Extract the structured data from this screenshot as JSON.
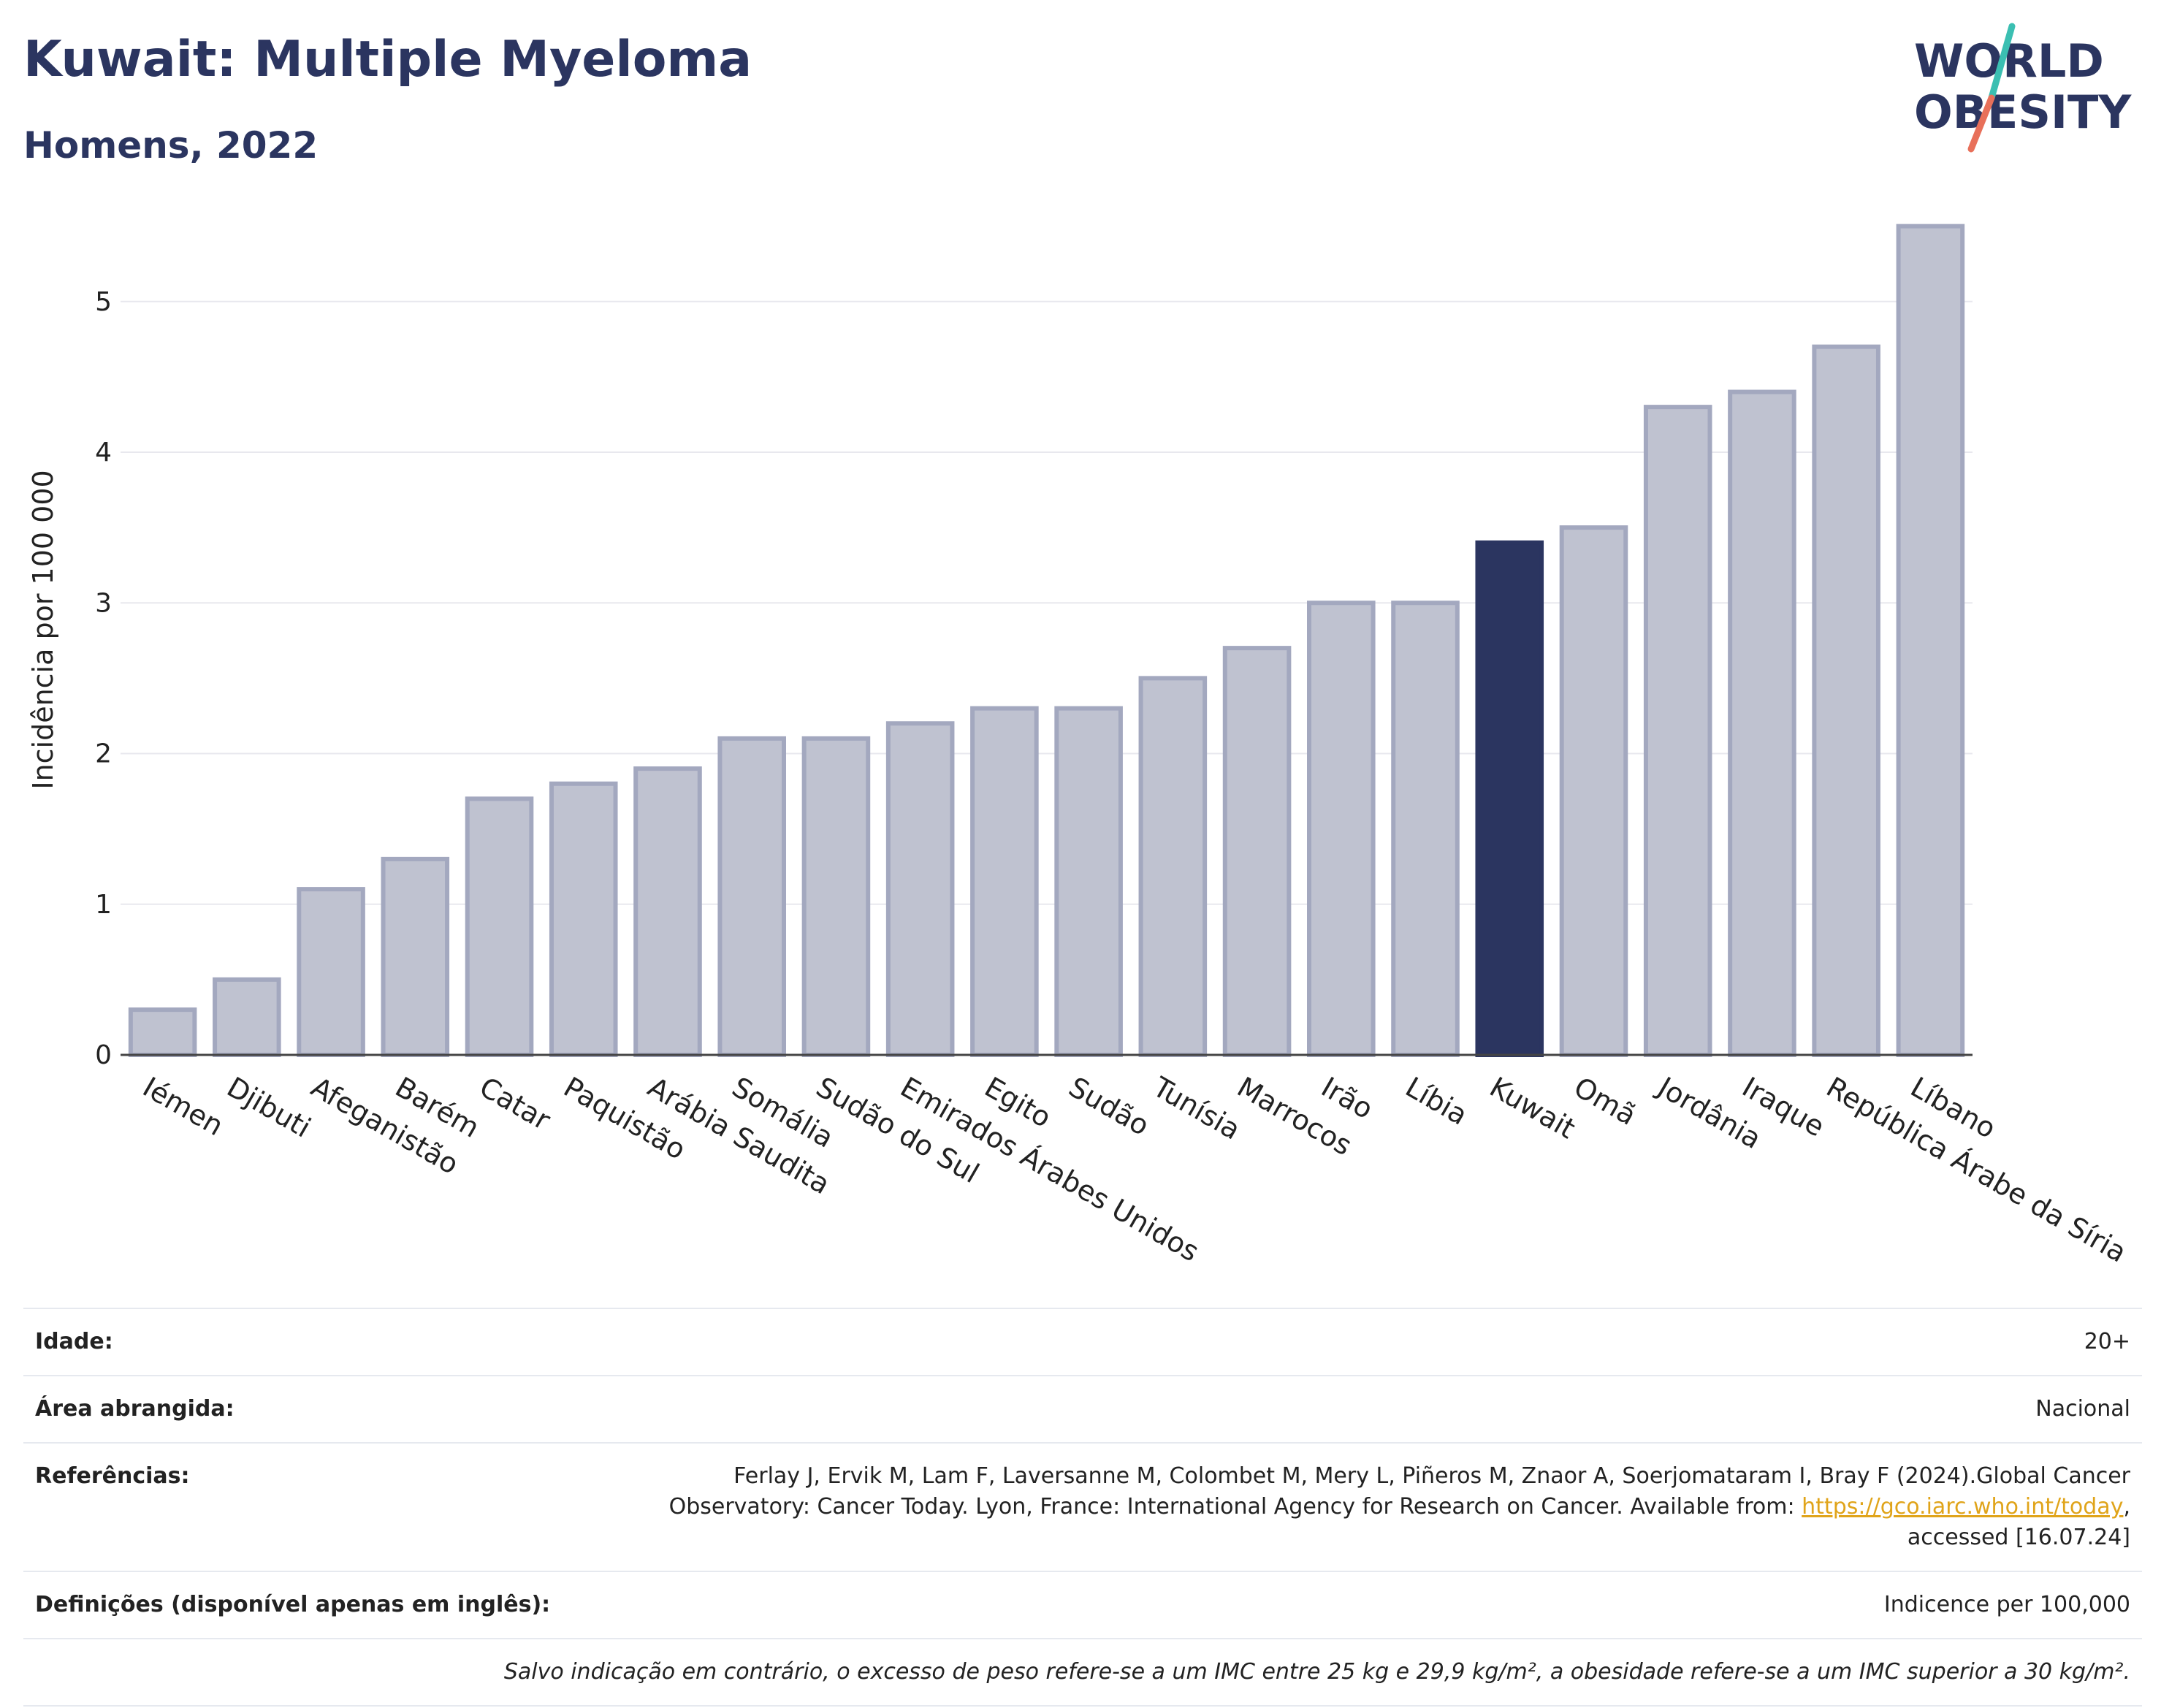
{
  "header": {
    "title": "Kuwait: Multiple Myeloma",
    "subtitle": "Homens, 2022"
  },
  "logo": {
    "line1": "WORLD",
    "line2": "OBESITY"
  },
  "colors": {
    "highlight": "#2b3560",
    "bar": "#bfc2d0",
    "bar_edge": "#a3a8bf",
    "grid": "#e8e8ee",
    "logo_text": "#2b3560",
    "logo_teal": "#3bbfb2",
    "logo_coral": "#e8705a"
  },
  "chart_data": {
    "type": "bar",
    "categories": [
      "Iémen",
      "Djibuti",
      "Afeganistão",
      "Barém",
      "Catar",
      "Paquistão",
      "Arábia Saudita",
      "Somália",
      "Sudão do Sul",
      "Emirados Árabes Unidos",
      "Egito",
      "Sudão",
      "Tunísia",
      "Marrocos",
      "Irão",
      "Líbia",
      "Kuwait",
      "Omã",
      "Jordânia",
      "Iraque",
      "República Árabe da Síria",
      "Líbano"
    ],
    "values": [
      0.3,
      0.5,
      1.1,
      1.3,
      1.7,
      1.8,
      1.9,
      2.1,
      2.1,
      2.2,
      2.3,
      2.3,
      2.5,
      2.7,
      3.0,
      3.0,
      3.4,
      3.5,
      4.3,
      4.4,
      4.7,
      5.5
    ],
    "highlight": "Kuwait",
    "ylabel": "Incidência por 100 000",
    "xlabel": "",
    "ylim": [
      0,
      5.6
    ],
    "yticks": [
      0,
      1,
      2,
      3,
      4,
      5
    ],
    "grid": true
  },
  "info": {
    "rows": [
      {
        "label": "Idade:",
        "value": "20+"
      },
      {
        "label": "Área abrangida:",
        "value": "Nacional"
      },
      {
        "label": "Referências:",
        "ref_text": "Ferlay J, Ervik M, Lam F, Laversanne M, Colombet M, Mery L, Piñeros M, Znaor A, Soerjomataram I, Bray F (2024).Global Cancer Observatory: Cancer Today. Lyon, France: International Agency for Research on Cancer. Available from: ",
        "ref_link": "https://gco.iarc.who.int/today",
        "ref_tail": ", accessed [16.07.24]"
      },
      {
        "label": "Definições (disponível apenas em inglês):",
        "value": "Indicence per 100,000"
      }
    ],
    "note": "Salvo indicação em contrário, o excesso de peso refere-se a um IMC entre 25 kg e 29,9 kg/m², a obesidade refere-se a um IMC superior a 30 kg/m²."
  }
}
